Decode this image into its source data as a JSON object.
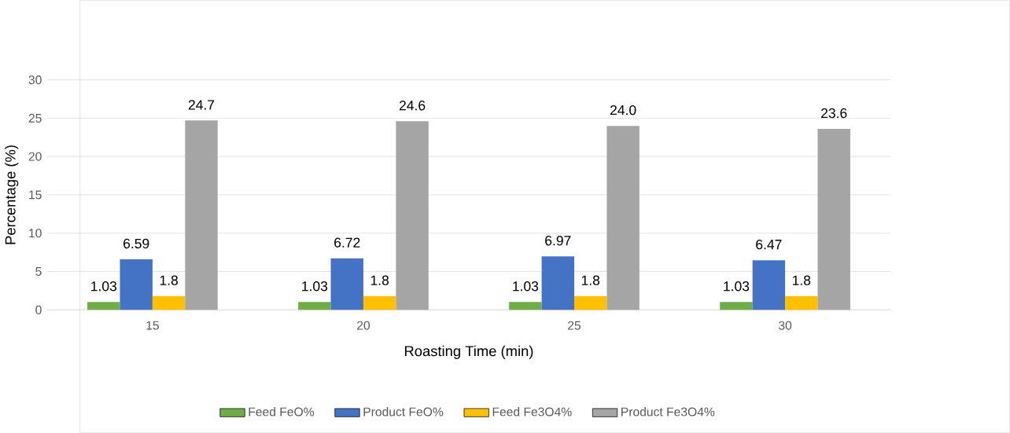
{
  "chart_data": {
    "type": "bar",
    "xlabel": "Roasting Time (min)",
    "ylabel": "Percentage (%)",
    "categories": [
      "15",
      "20",
      "25",
      "30"
    ],
    "series": [
      {
        "name": "Feed FeO%",
        "color": "#70ad47",
        "values": [
          1.03,
          1.03,
          1.03,
          1.03
        ],
        "value_labels": [
          "1.03",
          "1.03",
          "1.03",
          "1.03"
        ]
      },
      {
        "name": "Product FeO%",
        "color": "#4472c4",
        "values": [
          6.59,
          6.72,
          6.97,
          6.47
        ],
        "value_labels": [
          "6.59",
          "6.72",
          "6.97",
          "6.47"
        ]
      },
      {
        "name": "Feed Fe3O4%",
        "color": "#ffc000",
        "values": [
          1.8,
          1.8,
          1.8,
          1.8
        ],
        "value_labels": [
          "1.8",
          "1.8",
          "1.8",
          "1.8"
        ]
      },
      {
        "name": "Product Fe3O4%",
        "color": "#a5a5a5",
        "values": [
          24.7,
          24.6,
          24.0,
          23.6
        ],
        "value_labels": [
          "24.7",
          "24.6",
          "24.0",
          "23.6"
        ]
      }
    ],
    "ylim": [
      0,
      30
    ],
    "yticks": [
      0,
      5,
      10,
      15,
      20,
      25,
      30
    ],
    "grid": "y",
    "legend": "bottom"
  }
}
